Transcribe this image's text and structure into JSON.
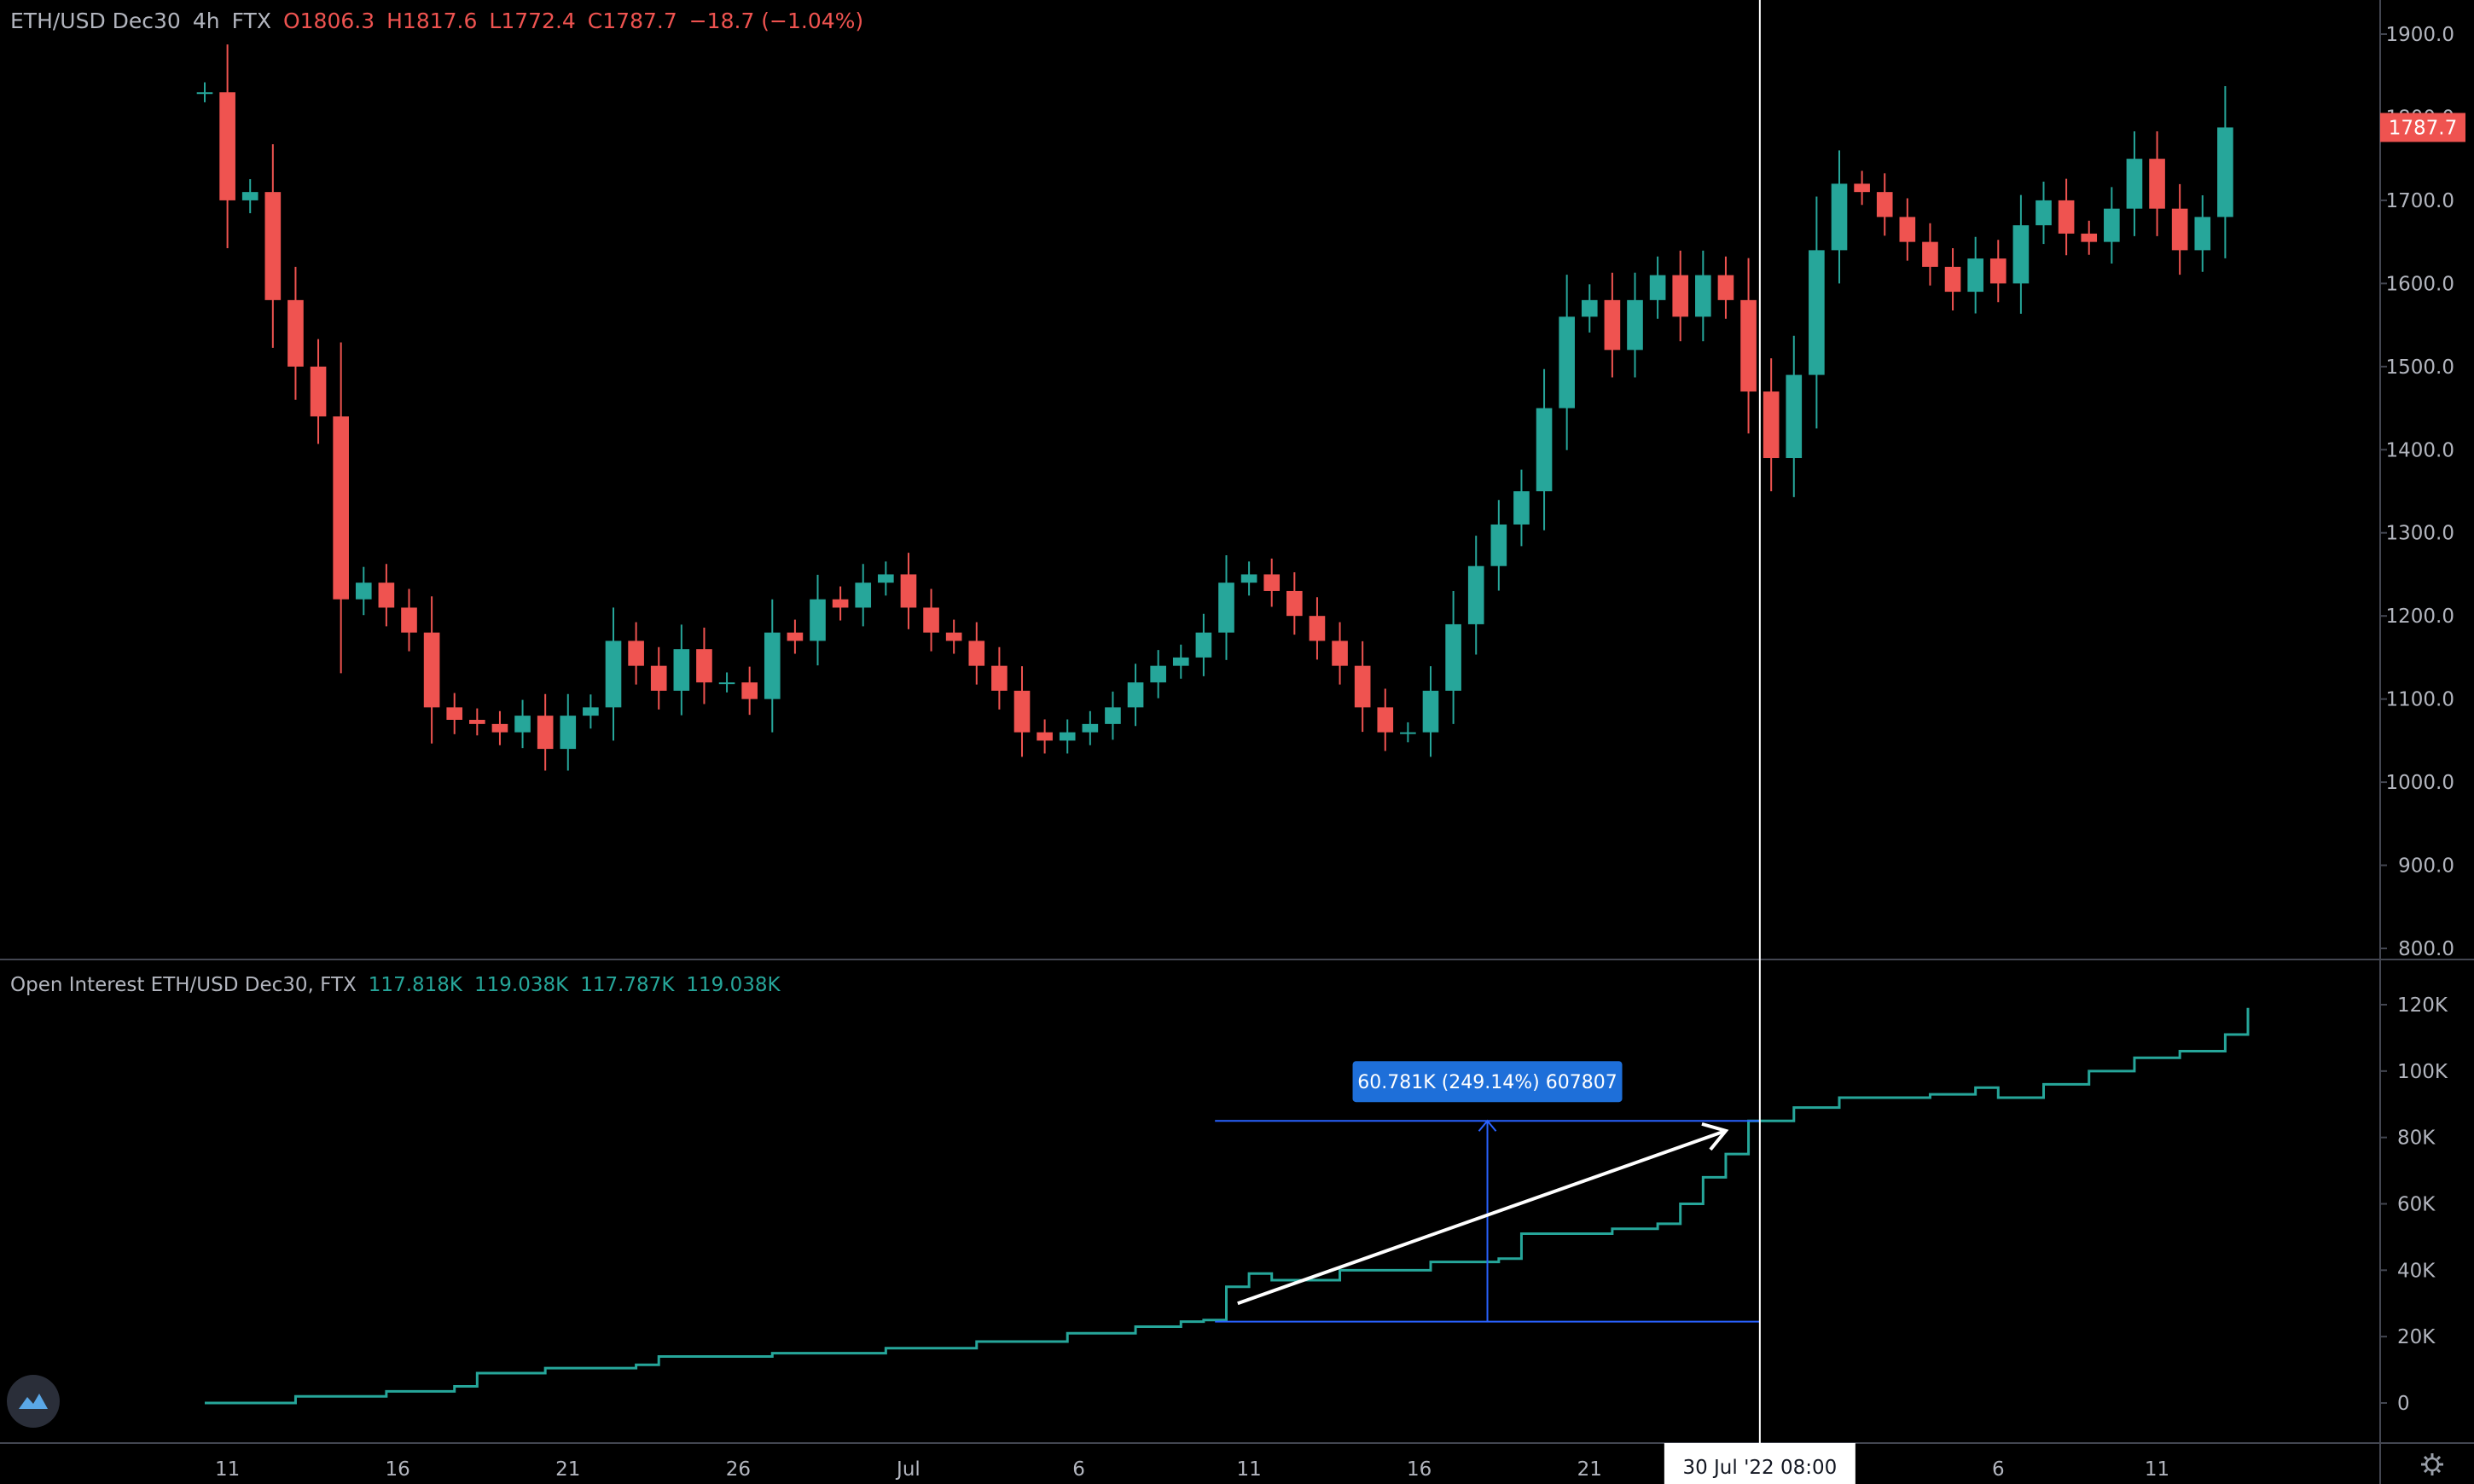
{
  "header": {
    "symbol": "ETH/USD Dec30",
    "interval": "4h",
    "exchange": "FTX",
    "open": "O1806.3",
    "high": "H1817.6",
    "low": "L1772.4",
    "close": "C1787.7",
    "change": "−18.7 (−1.04%)"
  },
  "indicator": {
    "name": "Open Interest ETH/USD Dec30, FTX",
    "v1": "117.818K",
    "v2": "119.038K",
    "v3": "117.787K",
    "v4": "119.038K"
  },
  "measure_label": "60.781K (249.14%) 607807",
  "crosshair_label": "30 Jul '22   08:00",
  "last_price_label": "1787.7",
  "colors": {
    "up": "#26a69a",
    "down": "#ef5350",
    "measure": "#2962ff",
    "background": "#000000"
  },
  "icons": {
    "logo": "tradingview-logo-icon",
    "settings": "gear-icon"
  },
  "chart_data": [
    {
      "type": "candlestick",
      "ylim": [
        800,
        1900
      ],
      "yticks": [
        "1900.0",
        "1800.0",
        "1700.0",
        "1600.0",
        "1500.0",
        "1400.0",
        "1300.0",
        "1200.0",
        "1100.0",
        "1000.0",
        "900.0",
        "800.0"
      ],
      "xticks": [
        "11",
        "16",
        "21",
        "26",
        "Jul",
        "6",
        "11",
        "16",
        "21",
        "26",
        "6",
        "11"
      ],
      "series": [
        {
          "values": [
            [
              10,
              1830
            ],
            [
              11,
              1700
            ],
            [
              12,
              1710
            ],
            [
              13,
              1580
            ],
            [
              14,
              1500
            ],
            [
              15,
              1440
            ],
            [
              16,
              1220
            ],
            [
              17,
              1240
            ],
            [
              18,
              1210
            ],
            [
              19,
              1180
            ],
            [
              20,
              1090
            ],
            [
              21,
              1075
            ],
            [
              22,
              1070
            ],
            [
              23,
              1060
            ],
            [
              24,
              1080
            ],
            [
              25,
              1040
            ],
            [
              26,
              1080
            ],
            [
              27,
              1090
            ],
            [
              28,
              1170
            ],
            [
              29,
              1140
            ],
            [
              30,
              1110
            ],
            [
              31,
              1160
            ],
            [
              32,
              1120
            ],
            [
              33,
              1120
            ],
            [
              34,
              1100
            ],
            [
              35,
              1180
            ],
            [
              36,
              1170
            ],
            [
              37,
              1220
            ],
            [
              38,
              1210
            ],
            [
              39,
              1240
            ],
            [
              40,
              1250
            ],
            [
              41,
              1210
            ],
            [
              42,
              1180
            ],
            [
              43,
              1170
            ],
            [
              44,
              1140
            ],
            [
              45,
              1110
            ],
            [
              46,
              1060
            ],
            [
              47,
              1050
            ],
            [
              48,
              1060
            ],
            [
              49,
              1070
            ],
            [
              50,
              1090
            ],
            [
              51,
              1120
            ],
            [
              52,
              1140
            ],
            [
              53,
              1150
            ],
            [
              54,
              1180
            ],
            [
              55,
              1240
            ],
            [
              56,
              1250
            ],
            [
              57,
              1230
            ],
            [
              58,
              1200
            ],
            [
              59,
              1170
            ],
            [
              60,
              1140
            ],
            [
              61,
              1090
            ],
            [
              62,
              1060
            ],
            [
              63,
              1060
            ],
            [
              64,
              1110
            ],
            [
              65,
              1190
            ],
            [
              66,
              1260
            ],
            [
              67,
              1310
            ],
            [
              68,
              1350
            ],
            [
              69,
              1450
            ],
            [
              70,
              1560
            ],
            [
              71,
              1580
            ],
            [
              72,
              1520
            ],
            [
              73,
              1580
            ],
            [
              74,
              1610
            ],
            [
              75,
              1560
            ],
            [
              76,
              1610
            ],
            [
              77,
              1580
            ],
            [
              78,
              1470
            ],
            [
              79,
              1390
            ],
            [
              80,
              1490
            ],
            [
              81,
              1640
            ],
            [
              82,
              1720
            ],
            [
              83,
              1710
            ],
            [
              84,
              1680
            ],
            [
              85,
              1650
            ],
            [
              86,
              1620
            ],
            [
              87,
              1590
            ],
            [
              88,
              1630
            ],
            [
              89,
              1600
            ],
            [
              90,
              1670
            ],
            [
              91,
              1700
            ],
            [
              92,
              1660
            ],
            [
              93,
              1650
            ],
            [
              94,
              1690
            ],
            [
              95,
              1750
            ],
            [
              96,
              1690
            ],
            [
              97,
              1640
            ],
            [
              98,
              1680
            ],
            [
              99,
              1787.7
            ]
          ]
        }
      ]
    },
    {
      "type": "line",
      "ylim": [
        0,
        120000
      ],
      "yticks": [
        "120K",
        "100K",
        "80K",
        "60K",
        "40K",
        "20K",
        "0"
      ],
      "series": [
        {
          "values": [
            [
              10,
              0
            ],
            [
              14,
              2000
            ],
            [
              18,
              3500
            ],
            [
              21,
              5000
            ],
            [
              22,
              9000
            ],
            [
              25,
              10500
            ],
            [
              29,
              11500
            ],
            [
              30,
              14000
            ],
            [
              35,
              15000
            ],
            [
              40,
              16500
            ],
            [
              44,
              18500
            ],
            [
              48,
              21000
            ],
            [
              51,
              23000
            ],
            [
              53,
              24500
            ],
            [
              54,
              25000
            ],
            [
              55,
              35000
            ],
            [
              56,
              39000
            ],
            [
              57,
              37000
            ],
            [
              60,
              40000
            ],
            [
              64,
              42500
            ],
            [
              67,
              43500
            ],
            [
              68,
              51000
            ],
            [
              72,
              52500
            ],
            [
              74,
              54000
            ],
            [
              75,
              60000
            ],
            [
              76,
              68000
            ],
            [
              77,
              75000
            ],
            [
              78,
              85000
            ],
            [
              80,
              89000
            ],
            [
              82,
              92000
            ],
            [
              84,
              92000
            ],
            [
              86,
              93000
            ],
            [
              88,
              95000
            ],
            [
              89,
              92000
            ],
            [
              91,
              96000
            ],
            [
              93,
              100000
            ],
            [
              95,
              104000
            ],
            [
              97,
              106000
            ],
            [
              99,
              111000
            ],
            [
              100,
              119038
            ]
          ]
        }
      ]
    }
  ]
}
